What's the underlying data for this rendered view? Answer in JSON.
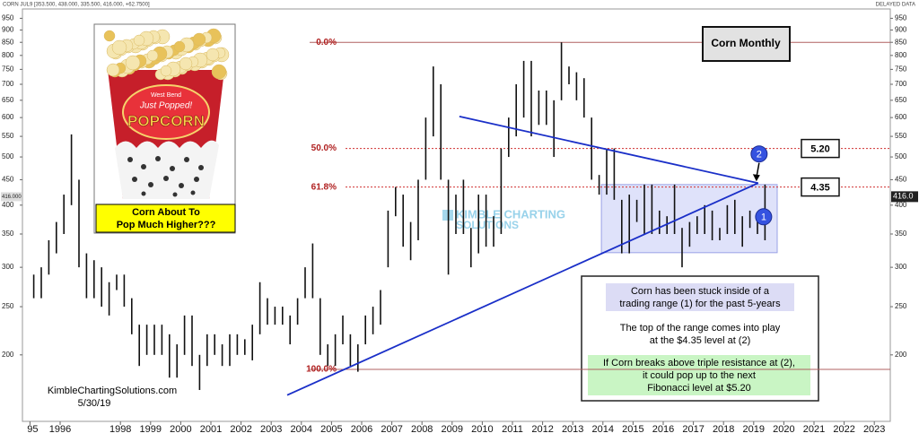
{
  "header": {
    "symbol": "CORN JUL9 [353.500, 438.000, 335.500, 416.000, +62.7500]",
    "status": "DELAYED DATA"
  },
  "chart_data": {
    "type": "ohlc",
    "title": "Corn Monthly",
    "log_y": true,
    "color": "#111111",
    "xlim": [
      1994.75,
      2023.53
    ],
    "ylim": [
      147,
      1034
    ],
    "xticks": [
      {
        "value": 1995,
        "label": "95"
      },
      1996,
      1998,
      1999,
      2000,
      2001,
      2002,
      2003,
      2004,
      2005,
      2006,
      2007,
      2008,
      2009,
      2010,
      2011,
      2012,
      2013,
      2014,
      2015,
      2016,
      2017,
      2018,
      2019,
      2020,
      2021,
      2022,
      2023
    ],
    "yticks": [
      200,
      250,
      300,
      350,
      400,
      450,
      500,
      550,
      600,
      650,
      700,
      750,
      800,
      850,
      900,
      950
    ],
    "x": [
      1995.125,
      1995.375,
      1995.625,
      1995.875,
      1996.125,
      1996.375,
      1996.625,
      1996.875,
      1997.125,
      1997.375,
      1997.625,
      1997.875,
      1998.125,
      1998.375,
      1998.625,
      1998.875,
      1999.125,
      1999.375,
      1999.625,
      1999.875,
      2000.125,
      2000.375,
      2000.625,
      2000.875,
      2001.125,
      2001.375,
      2001.625,
      2001.875,
      2002.125,
      2002.375,
      2002.625,
      2002.875,
      2003.125,
      2003.375,
      2003.625,
      2003.875,
      2004.125,
      2004.375,
      2004.625,
      2004.875,
      2005.125,
      2005.375,
      2005.625,
      2005.875,
      2006.125,
      2006.375,
      2006.625,
      2006.875,
      2007.125,
      2007.375,
      2007.625,
      2007.875,
      2008.125,
      2008.375,
      2008.625,
      2008.875,
      2009.125,
      2009.375,
      2009.625,
      2009.875,
      2010.125,
      2010.375,
      2010.625,
      2010.875,
      2011.125,
      2011.375,
      2011.625,
      2011.875,
      2012.125,
      2012.375,
      2012.625,
      2012.875,
      2013.125,
      2013.375,
      2013.625,
      2013.875,
      2014.125,
      2014.375,
      2014.625,
      2014.875,
      2015.125,
      2015.375,
      2015.625,
      2015.875,
      2016.125,
      2016.375,
      2016.625,
      2016.875,
      2017.125,
      2017.375,
      2017.625,
      2017.875,
      2018.125,
      2018.375,
      2018.625,
      2018.875,
      2019.125,
      2019.375
    ],
    "low": [
      260,
      260,
      290,
      320,
      350,
      400,
      300,
      260,
      260,
      250,
      240,
      270,
      250,
      220,
      190,
      200,
      200,
      200,
      180,
      180,
      200,
      190,
      170,
      190,
      200,
      190,
      190,
      200,
      200,
      195,
      220,
      230,
      230,
      230,
      210,
      230,
      260,
      260,
      200,
      190,
      190,
      210,
      190,
      185,
      210,
      220,
      230,
      300,
      380,
      330,
      310,
      340,
      450,
      550,
      450,
      290,
      350,
      350,
      300,
      320,
      330,
      330,
      350,
      500,
      550,
      600,
      550,
      580,
      580,
      500,
      650,
      700,
      650,
      600,
      450,
      420,
      420,
      410,
      320,
      320,
      370,
      350,
      350,
      350,
      350,
      350,
      300,
      330,
      350,
      350,
      340,
      340,
      350,
      350,
      330,
      360,
      350,
      340
    ],
    "high": [
      290,
      300,
      340,
      370,
      420,
      555,
      450,
      320,
      310,
      300,
      280,
      290,
      290,
      260,
      230,
      230,
      230,
      230,
      220,
      210,
      240,
      240,
      200,
      220,
      220,
      210,
      220,
      220,
      215,
      230,
      280,
      260,
      250,
      250,
      240,
      260,
      300,
      335,
      260,
      210,
      220,
      240,
      220,
      210,
      240,
      250,
      270,
      390,
      435,
      420,
      370,
      450,
      600,
      760,
      700,
      450,
      420,
      450,
      360,
      420,
      420,
      380,
      520,
      600,
      700,
      780,
      780,
      680,
      680,
      650,
      850,
      760,
      740,
      720,
      600,
      460,
      520,
      520,
      410,
      420,
      410,
      440,
      440,
      390,
      380,
      440,
      360,
      370,
      380,
      400,
      390,
      360,
      400,
      410,
      380,
      390,
      380,
      440
    ],
    "fib_levels": [
      {
        "label": "0.0%",
        "value": 850
      },
      {
        "label": "50.0%",
        "value": 520
      },
      {
        "label": "61.8%",
        "value": 435
      },
      {
        "label": "100.0%",
        "value": 187
      }
    ],
    "trendlines": [
      {
        "x": [
          2009.24,
          2019.15
        ],
        "y": [
          603,
          443
        ]
      },
      {
        "x": [
          2003.53,
          2019.15
        ],
        "y": [
          166,
          443
        ]
      }
    ],
    "range_box": {
      "x": [
        2013.95,
        2019.78
      ],
      "y": [
        321,
        440
      ]
    },
    "callouts": [
      {
        "label": "5.20",
        "value": 520
      },
      {
        "label": "4.35",
        "value": 435
      }
    ],
    "markers": [
      {
        "label": "1",
        "x": 2019.33,
        "y": 379
      },
      {
        "label": "2",
        "x": 2019.18,
        "y": 507
      }
    ],
    "last_price": {
      "value": 416,
      "label": "416.0",
      "axis_label": "416.000"
    },
    "watermark": [
      "KIMBLE CHARTING",
      "SOLUTIONS"
    ]
  },
  "inset": {
    "brand": "West Bend",
    "slogan": "Just Popped!",
    "product": "POPCORN",
    "caption": [
      "Corn About To",
      "Pop Much Higher???"
    ]
  },
  "notes": {
    "range": [
      "Corn has been stuck inside of a",
      "trading range (1) for the past 5-years"
    ],
    "top": [
      "The top of the range comes into play",
      "at the $4.35 level at (2)"
    ],
    "breakout": [
      "If Corn breaks above triple resistance at (2),",
      "it could pop up to the next",
      "Fibonacci level at $5.20"
    ]
  },
  "footer": {
    "site": "KimbleChartingSolutions.com",
    "date": "5/30/19"
  }
}
